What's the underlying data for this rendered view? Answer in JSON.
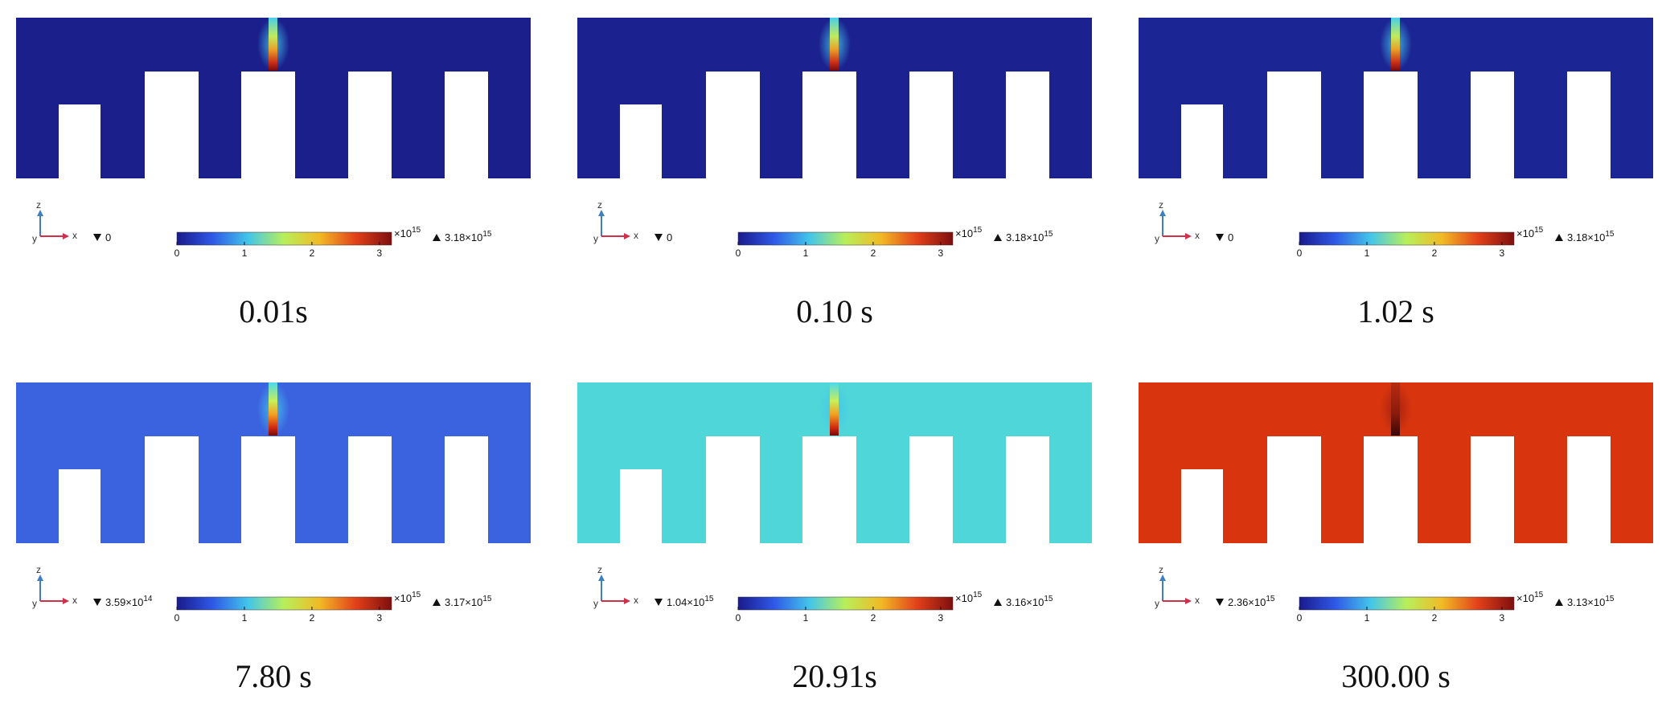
{
  "figure": {
    "panels": [
      {
        "caption": "0.01s",
        "min": "0",
        "min_exp": "",
        "max": "3.18×10",
        "max_exp": "15",
        "base_color": "#1a1f8c",
        "jet": "weak",
        "inlet": "small"
      },
      {
        "caption": "0.10 s",
        "min": "0",
        "min_exp": "",
        "max": "3.18×10",
        "max_exp": "15",
        "base_color": "#1b228f",
        "jet": "weak",
        "inlet": "small"
      },
      {
        "caption": "1.02 s",
        "min": "0",
        "min_exp": "",
        "max": "3.18×10",
        "max_exp": "15",
        "base_color": "#1c2594",
        "jet": "weak",
        "inlet": "small"
      },
      {
        "caption": "7.80 s",
        "min": "3.59×10",
        "min_exp": "14",
        "max": "3.17×10",
        "max_exp": "15",
        "base_color": "#3b63df",
        "jet": "strong",
        "inlet": "small"
      },
      {
        "caption": "20.91s",
        "min": "1.04×10",
        "min_exp": "15",
        "max": "3.16×10",
        "max_exp": "15",
        "base_color": "#4fd6d8",
        "jet": "strong",
        "inlet": "small"
      },
      {
        "caption": "300.00 s",
        "min": "2.36×10",
        "min_exp": "15",
        "max": "3.13×10",
        "max_exp": "15",
        "base_color": "#d8350e",
        "jet": "dark",
        "inlet": "small"
      }
    ],
    "colorbar": {
      "ticks": [
        "0",
        "1",
        "2",
        "3"
      ],
      "multiplier": "×10",
      "multiplier_exp": "15",
      "colors": [
        "#1a1a8c",
        "#2f58e6",
        "#43c6ea",
        "#b8ef5a",
        "#f1b925",
        "#e2401a",
        "#7e0f0f"
      ]
    },
    "axes": {
      "z_label": "z",
      "x_label": "x",
      "y_label": "y"
    }
  }
}
